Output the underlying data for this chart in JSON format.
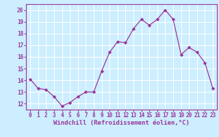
{
  "x": [
    0,
    1,
    2,
    3,
    4,
    5,
    6,
    7,
    8,
    9,
    10,
    11,
    12,
    13,
    14,
    15,
    16,
    17,
    18,
    19,
    20,
    21,
    22,
    23
  ],
  "y": [
    14.1,
    13.3,
    13.2,
    12.6,
    11.8,
    12.1,
    12.6,
    13.0,
    13.0,
    14.8,
    16.4,
    17.3,
    17.2,
    18.4,
    19.2,
    18.7,
    19.2,
    20.0,
    19.2,
    16.2,
    16.8,
    16.4,
    15.5,
    13.3
  ],
  "line_color": "#993399",
  "marker": "D",
  "marker_size": 2.2,
  "bg_color": "#cceeff",
  "grid_color": "#ffffff",
  "xlabel": "Windchill (Refroidissement éolien,°C)",
  "tick_color": "#993399",
  "ylim": [
    11.5,
    20.5
  ],
  "xlim": [
    -0.5,
    23.5
  ],
  "yticks": [
    12,
    13,
    14,
    15,
    16,
    17,
    18,
    19,
    20
  ],
  "xticks": [
    0,
    1,
    2,
    3,
    4,
    5,
    6,
    7,
    8,
    9,
    10,
    11,
    12,
    13,
    14,
    15,
    16,
    17,
    18,
    19,
    20,
    21,
    22,
    23
  ],
  "border_color": "#993399",
  "tick_fontsize": 5.5,
  "xlabel_fontsize": 6.5
}
